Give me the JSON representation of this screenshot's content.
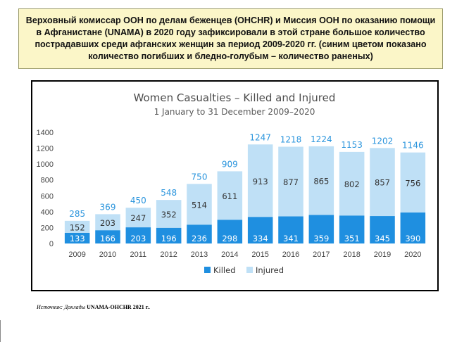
{
  "caption": "Верховный комиссар ООН по делам беженцев (OHCHR) и Миссия ООН по оказанию помощи в Афганистане (UNAMA) в 2020 году зафиксировали в этой стране большое количество пострадавших среди афганских женщин за период 2009-2020 гг. (синим цветом показано количество погибших и бледно-голубым – количество раненых)",
  "source": {
    "prefix": "Источник: Доклады ",
    "bold": "UNAMA-OHCHR 2021 г.",
    "suffix": "."
  },
  "chart_data": {
    "type": "bar",
    "stacked": true,
    "title": "Women Casualties – Killed and Injured",
    "subtitle": "1 January to 31 December 2009–2020",
    "categories": [
      "2009",
      "2010",
      "2011",
      "2012",
      "2013",
      "2014",
      "2015",
      "2016",
      "2017",
      "2018",
      "2019",
      "2020"
    ],
    "series": [
      {
        "name": "Killed",
        "color": "#1f8fe0",
        "values": [
          133,
          166,
          203,
          196,
          236,
          298,
          334,
          341,
          359,
          351,
          345,
          390
        ]
      },
      {
        "name": "Injured",
        "color": "#bfe0f6",
        "values": [
          152,
          203,
          247,
          352,
          514,
          611,
          913,
          877,
          865,
          802,
          857,
          756
        ]
      }
    ],
    "totals": [
      285,
      369,
      450,
      548,
      750,
      909,
      1247,
      1218,
      1224,
      1153,
      1202,
      1146
    ],
    "ylim": [
      0,
      1400
    ],
    "yticks": [
      0,
      200,
      400,
      600,
      800,
      1000,
      1200,
      1400
    ],
    "grid": false,
    "legend": "bottom-center",
    "colors": {
      "total_label": "#2b95dd"
    }
  }
}
